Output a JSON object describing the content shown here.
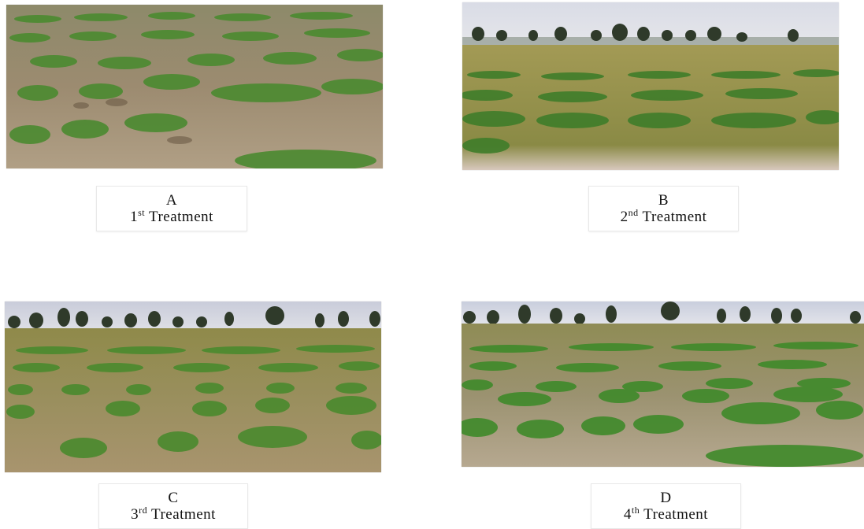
{
  "panels": [
    {
      "letter": "A",
      "number": "1",
      "suffix": "st",
      "label": "Treatment"
    },
    {
      "letter": "B",
      "number": "2",
      "suffix": "nd",
      "label": "Treatment"
    },
    {
      "letter": "C",
      "number": "3",
      "suffix": "rd",
      "label": "Treatment"
    },
    {
      "letter": "D",
      "number": "4",
      "suffix": "th",
      "label": "Treatment"
    }
  ],
  "colors": {
    "soil": "#a58f6e",
    "dry_grass": "#8f8a4a",
    "plant": "#3f7d2a",
    "plant_light": "#5e9e3a",
    "sky": "#d9dde6",
    "tree": "#2f3a2a"
  }
}
